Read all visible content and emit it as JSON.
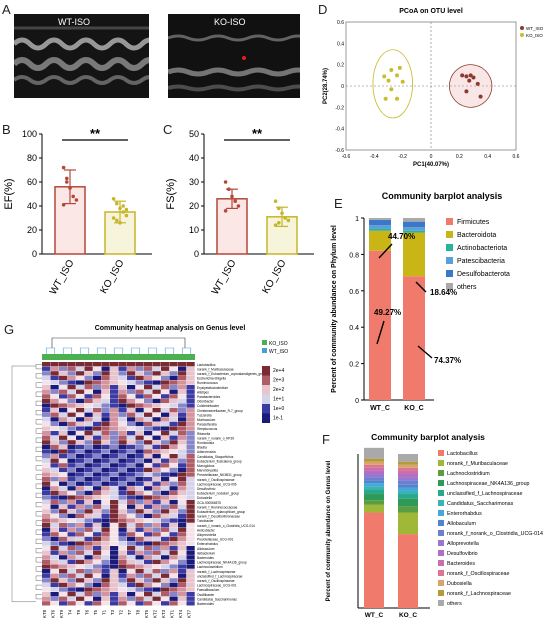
{
  "panel_labels": {
    "A": "A",
    "B": "B",
    "C": "C",
    "D": "D",
    "E": "E",
    "F": "F",
    "G": "G"
  },
  "echo": {
    "left_title": "WT-ISO",
    "right_title": "KO-ISO"
  },
  "colors": {
    "wt": "#b5473a",
    "ko": "#c6b52a",
    "pcoa_wt": "#8b3a2b",
    "pcoa_ko": "#c8bd2f",
    "firmicutes": "#f07b6c",
    "bacteroidota": "#c9b515",
    "actinobacteriota": "#2bb39a",
    "patescibacteria": "#5aa0d8",
    "desulfobacterota": "#3c78c8",
    "others": "#a9a9a9"
  },
  "chart_data": [
    {
      "id": "B",
      "type": "bar",
      "categories": [
        "WT_ISO",
        "KO_ISO"
      ],
      "values": [
        56,
        35
      ],
      "errors": [
        14,
        9
      ],
      "points": [
        [
          72,
          63,
          55,
          48,
          45,
          41,
          60
        ],
        [
          46,
          42,
          38,
          35,
          32,
          30,
          28,
          26,
          40,
          37
        ]
      ],
      "ylabel": "EF(%)",
      "ylim": [
        0,
        100
      ],
      "yticks": [
        0,
        20,
        40,
        60,
        80,
        100
      ],
      "significance": "**"
    },
    {
      "id": "C",
      "type": "bar",
      "categories": [
        "WT_ISO",
        "KO_ISO"
      ],
      "values": [
        23,
        15.5
      ],
      "errors": [
        4,
        4
      ],
      "points": [
        [
          30,
          27,
          24,
          22,
          20,
          18
        ],
        [
          22,
          19,
          17,
          15,
          14,
          12,
          13
        ]
      ],
      "ylabel": "FS(%)",
      "ylim": [
        0,
        50
      ],
      "yticks": [
        0,
        10,
        20,
        30,
        40,
        50
      ],
      "significance": "**"
    },
    {
      "id": "D",
      "type": "scatter",
      "title": "PCoA on OTU level",
      "xlabel": "PC1(40.07%)",
      "ylabel": "PC2(28.74%)",
      "xlim": [
        -0.6,
        0.6
      ],
      "ylim": [
        -0.6,
        0.6
      ],
      "xticks": [
        -0.6,
        -0.4,
        -0.2,
        0,
        0.2,
        0.4,
        0.6
      ],
      "yticks": [
        -0.6,
        -0.4,
        -0.2,
        0,
        0.2,
        0.4,
        0.6
      ],
      "series": [
        {
          "name": "WT_ISO",
          "points": [
            [
              0.22,
              0.1
            ],
            [
              0.25,
              0.09
            ],
            [
              0.28,
              0.1
            ],
            [
              0.3,
              0.08
            ],
            [
              0.27,
              0.05
            ],
            [
              0.33,
              0.02
            ],
            [
              0.25,
              -0.05
            ],
            [
              0.35,
              -0.1
            ]
          ]
        },
        {
          "name": "KO_ISO",
          "points": [
            [
              -0.28,
              0.15
            ],
            [
              -0.22,
              0.17
            ],
            [
              -0.24,
              0.1
            ],
            [
              -0.33,
              0.09
            ],
            [
              -0.3,
              0.05
            ],
            [
              -0.2,
              0.04
            ],
            [
              -0.28,
              -0.03
            ],
            [
              -0.32,
              -0.12
            ],
            [
              -0.24,
              -0.12
            ]
          ]
        }
      ]
    },
    {
      "id": "E",
      "type": "bar",
      "title": "Community barplot analysis",
      "ylabel": "Percent of community abundance on Phylum level",
      "categories": [
        "WT_C",
        "KO_C"
      ],
      "yticks": [
        0,
        0.2,
        0.4,
        0.6,
        0.8,
        1
      ],
      "series": [
        {
          "name": "Firmicutes",
          "values": [
            0.82,
            0.68
          ]
        },
        {
          "name": "Bacteroidota",
          "values": [
            0.11,
            0.24
          ]
        },
        {
          "name": "Actinobacteriota",
          "values": [
            0.01,
            0.01
          ]
        },
        {
          "name": "Patescibacteria",
          "values": [
            0.02,
            0.02
          ]
        },
        {
          "name": "Desulfobacterota",
          "values": [
            0.03,
            0.03
          ]
        },
        {
          "name": "others",
          "values": [
            0.01,
            0.02
          ]
        }
      ],
      "annotations": [
        "44.70%",
        "18.64%",
        "49.27%",
        "74.37%"
      ]
    },
    {
      "id": "F",
      "type": "bar",
      "title": "Community barplot analysis",
      "ylabel": "Percent of community abundance on Genus level",
      "categories": [
        "WT_C",
        "KO_C"
      ],
      "series": [
        {
          "name": "Lactobacillus",
          "values": [
            0.62,
            0.48
          ]
        },
        {
          "name": "norank_f_Muribaculaceae",
          "values": [
            0.05,
            0.14
          ]
        },
        {
          "name": "Lachnoclostridium",
          "values": [
            0.03,
            0.04
          ]
        },
        {
          "name": "Lachnospiraceae_NK4A136_group",
          "values": [
            0.04,
            0.05
          ]
        },
        {
          "name": "unclassified_f_Lachnospiraceae",
          "values": [
            0.03,
            0.03
          ]
        },
        {
          "name": "Candidatus_Saccharimonas",
          "values": [
            0.02,
            0.02
          ]
        },
        {
          "name": "Enterorhabdus",
          "values": [
            0.02,
            0.02
          ]
        },
        {
          "name": "Allobaculum",
          "values": [
            0.02,
            0.02
          ]
        },
        {
          "name": "norank_f_norank_o_Clostridia_UCG-014",
          "values": [
            0.02,
            0.03
          ]
        },
        {
          "name": "Alloprevotella",
          "values": [
            0.02,
            0.02
          ]
        },
        {
          "name": "Desulfovibrio",
          "values": [
            0.02,
            0.02
          ]
        },
        {
          "name": "Bacteroides",
          "values": [
            0.02,
            0.02
          ]
        },
        {
          "name": "norank_f_Oscillospiraceae",
          "values": [
            0.02,
            0.02
          ]
        },
        {
          "name": "Dubosiella",
          "values": [
            0.02,
            0.02
          ]
        },
        {
          "name": "norank_f_Lachnospiraceae",
          "values": [
            0.02,
            0.02
          ]
        },
        {
          "name": "others",
          "values": [
            0.07,
            0.05
          ]
        }
      ],
      "colors": [
        "#f07b6c",
        "#a0b838",
        "#5a9e42",
        "#2f9a55",
        "#2aa88a",
        "#3ab3b8",
        "#43a9d6",
        "#4f84cf",
        "#6f7fd0",
        "#9a76cf",
        "#b46dc4",
        "#c96fae",
        "#dd7494",
        "#d9a36c",
        "#b59a3b",
        "#a9a9a9"
      ]
    },
    {
      "id": "G",
      "type": "heatmap",
      "title": "Community heatmap analysis on Genus level",
      "legend_groups": [
        "KO_ISO",
        "WT_ISO"
      ],
      "scale_labels": [
        "2e+4",
        "2e+3",
        "2e+2",
        "1e+1",
        "1e+0",
        "1e-1"
      ],
      "columns": [
        "KT8",
        "KT6",
        "KT9",
        "T4",
        "T9",
        "T6",
        "T5",
        "T1",
        "T3",
        "T2",
        "T7",
        "T8",
        "KT5",
        "KT2",
        "KT3",
        "KT1",
        "KT4",
        "KT7"
      ],
      "rows": [
        "Lactobacillus",
        "norank_f_Muribaculaceae",
        "norank_f_Eubacterium_coprostanoligenes_group",
        "Escherichia-Shigella",
        "Ruminococcus",
        "Erysipelatoclostridium",
        "Alistipes",
        "Parabacteroides",
        "Odoribacter",
        "Colidextribacter",
        "Christensenellaceae_R-7_group",
        "Tuzzerella",
        "Muribaculum",
        "Parasutterella",
        "Streptococcus",
        "Rikenella",
        "norank_f_norank_o_RF39",
        "Romboutsia",
        "Blautia",
        "Adlercreutzia",
        "Candidatus_Stoquefichus",
        "Eubacterium_fissicatena_group",
        "Monoglobus",
        "Marvinbryantia",
        "Prevotellaceae_NK3B31_group",
        "norank_f_Oscillospiraceae",
        "Lachnospiraceae_UCG-006",
        "Desulfovibrio",
        "Eubacterium_nodatum_group",
        "Dubosiella",
        "GCA-900066575",
        "norank_f_Ruminococcaceae",
        "Eubacterium_xylanophilum_group",
        "norank_f_Desulfovibrionaceae",
        "Turicibacter",
        "norank_f_norank_o_Clostridia_UCG-014",
        "Helicobacter",
        "Alloprevotella",
        "Prevotellaceae_UCG-001",
        "Enterorhabdus",
        "Allobaculum",
        "Ileibacterium",
        "Bacteroides",
        "Lachnospiraceae_NK4A136_group",
        "Lachnoclostridium",
        "norank_f_Lachnospiraceae",
        "unclassified_f_Lachnospiraceae",
        "norank_f_Oscillospiraceae",
        "Lachnospiraceae_UCG-001",
        "Faecalibaculum",
        "Oscillibacter",
        "Candidatus_Saccharimonas",
        "Bacteroides"
      ]
    }
  ]
}
